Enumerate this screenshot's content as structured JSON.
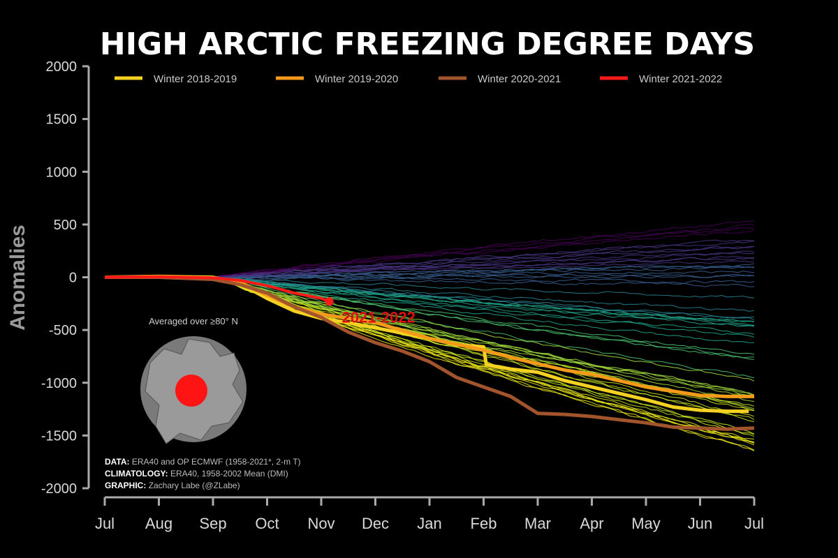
{
  "chart_data": {
    "type": "line",
    "title": "HIGH ARCTIC FREEZING DEGREE DAYS",
    "xlabel": "",
    "ylabel": "Anomalies",
    "ylim": [
      -2000,
      2000
    ],
    "yticks": [
      2000,
      1500,
      1000,
      500,
      0,
      -500,
      -1000,
      -1500,
      -2000
    ],
    "x_ticks": [
      "Jul",
      "Aug",
      "Sep",
      "Oct",
      "Nov",
      "Dec",
      "Jan",
      "Feb",
      "Mar",
      "Apr",
      "May",
      "Jun",
      "Jul"
    ],
    "x_units": "months since July 1 (0 = Jul, 12 = next Jul)",
    "highlight_series": [
      {
        "name": "Winter 2018-2019",
        "color": "#f5d122",
        "x": [
          0,
          1,
          2,
          2.5,
          3,
          3.5,
          4,
          4.5,
          5,
          6,
          6.5,
          7,
          7.05,
          7.5,
          8,
          8.5,
          9,
          9.5,
          10,
          10.5,
          11,
          11.5,
          11.9
        ],
        "y": [
          0,
          8,
          0,
          -60,
          -200,
          -320,
          -390,
          -430,
          -480,
          -580,
          -640,
          -660,
          -830,
          -870,
          -900,
          -980,
          -1040,
          -1100,
          -1160,
          -1230,
          -1260,
          -1270,
          -1270
        ]
      },
      {
        "name": "Winter 2019-2020",
        "color": "#f39a1b",
        "x": [
          0,
          1,
          2,
          2.5,
          3,
          3.5,
          4,
          4.5,
          5,
          6,
          7,
          7.5,
          8,
          8.5,
          9,
          9.5,
          10,
          10.5,
          11,
          11.5,
          12
        ],
        "y": [
          0,
          5,
          -10,
          -50,
          -170,
          -280,
          -350,
          -390,
          -430,
          -580,
          -690,
          -760,
          -820,
          -880,
          -920,
          -980,
          -1040,
          -1080,
          -1120,
          -1130,
          -1130
        ]
      },
      {
        "name": "Winter 2020-2021",
        "color": "#a2552c",
        "x": [
          0,
          1,
          2,
          2.5,
          3,
          3.5,
          4,
          4.5,
          5,
          5.5,
          6,
          6.5,
          7,
          7.5,
          8,
          8.5,
          9,
          9.5,
          10,
          10.5,
          11,
          11.5,
          12
        ],
        "y": [
          0,
          0,
          -20,
          -70,
          -150,
          -280,
          -380,
          -520,
          -620,
          -700,
          -800,
          -950,
          -1040,
          -1130,
          -1290,
          -1300,
          -1320,
          -1350,
          -1380,
          -1420,
          -1430,
          -1440,
          -1430
        ]
      },
      {
        "name": "Winter 2021-2022",
        "color": "#ff1a1a",
        "x": [
          0,
          1,
          2,
          2.5,
          3,
          3.5,
          4,
          4.15
        ],
        "y": [
          0,
          5,
          -5,
          -30,
          -80,
          -150,
          -200,
          -230
        ]
      }
    ],
    "background_series_range": {
      "label": "Other winters 1958-2018 (viridis colormap, thin lines)",
      "end_value_range": [
        -1670,
        570
      ]
    },
    "legend": {
      "position": "top",
      "entries": [
        "Winter 2018-2019",
        "Winter 2019-2020",
        "Winter 2020-2021",
        "Winter 2021-2022"
      ]
    },
    "annotations": {
      "current_label": "2021-2022",
      "current_value": -230,
      "current_x": 4.15
    }
  },
  "inset": {
    "caption": "Averaged over ≥80° N"
  },
  "credits": [
    {
      "bold": "DATA:",
      "text": " ERA40 and OP ECMWF (1958-2021*, 2-m T)"
    },
    {
      "bold": "CLIMATOLOGY:",
      "text": " ERA40, 1958-2002 Mean (DMI)"
    },
    {
      "bold": "GRAPHIC:",
      "text": " Zachary Labe (@ZLabe)"
    }
  ]
}
